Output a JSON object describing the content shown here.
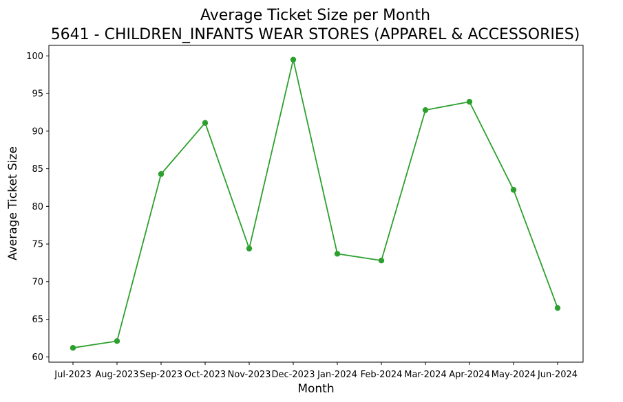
{
  "chart_data": {
    "type": "line",
    "title": "Average Ticket Size per Month",
    "subtitle": "5641 - CHILDREN_INFANTS WEAR STORES (APPAREL & ACCESSORIES)",
    "xlabel": "Month",
    "ylabel": "Average Ticket Size",
    "categories": [
      "Jul-2023",
      "Aug-2023",
      "Sep-2023",
      "Oct-2023",
      "Nov-2023",
      "Dec-2023",
      "Jan-2024",
      "Feb-2024",
      "Mar-2024",
      "Apr-2024",
      "May-2024",
      "Jun-2024"
    ],
    "series": [
      {
        "values": [
          61.2,
          62.1,
          84.3,
          91.1,
          74.4,
          99.5,
          73.7,
          72.8,
          92.8,
          93.9,
          82.2,
          66.5
        ],
        "color": "#2ca02c",
        "marker": "circle"
      }
    ],
    "ylim": [
      59.3,
      101.4
    ],
    "yticks": [
      60,
      65,
      70,
      75,
      80,
      85,
      90,
      95,
      100
    ],
    "grid": false,
    "legend": "none"
  }
}
